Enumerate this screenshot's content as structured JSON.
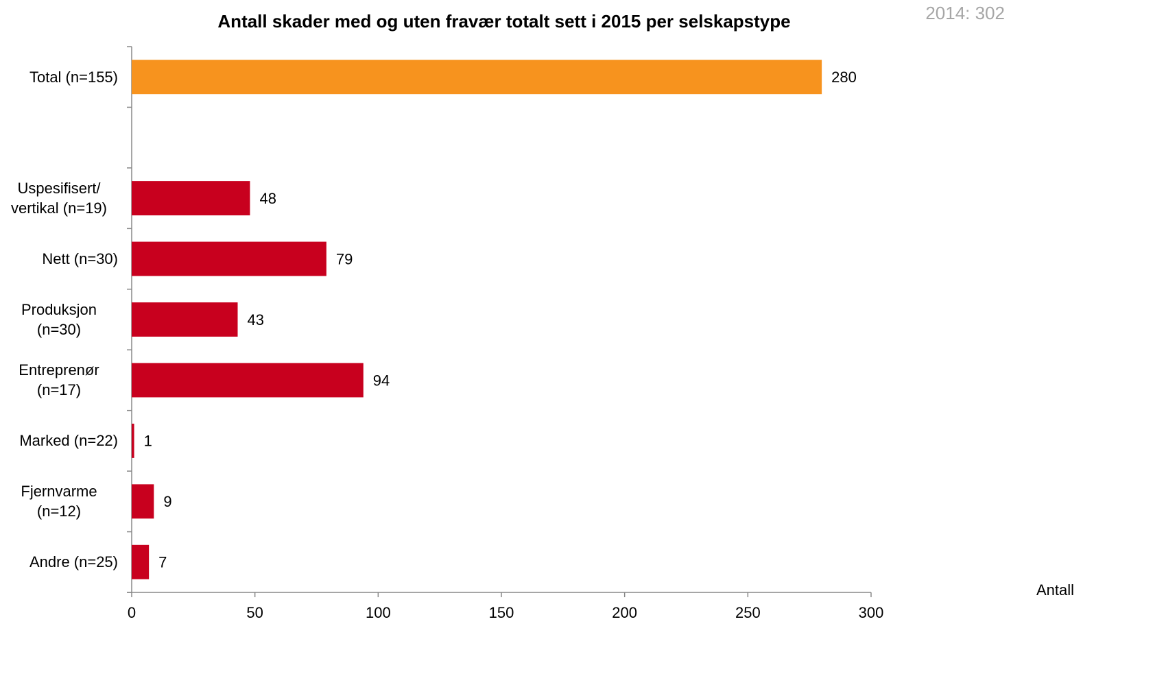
{
  "chart_data": {
    "type": "bar",
    "orientation": "horizontal",
    "title": "Antall skader med og uten fravær totalt sett i 2015 per selskapstype",
    "annotation": "2014: 302",
    "x_label": "Antall",
    "categories": [
      "Total (n=155)",
      null,
      "Uspesifisert/ vertikal (n=19)",
      "Nett (n=30)",
      "Produksjon (n=30)",
      "Entreprenør (n=17)",
      "Marked (n=22)",
      "Fjernvarme (n=12)",
      "Andre (n=25)"
    ],
    "values": [
      280,
      null,
      48,
      79,
      43,
      94,
      1,
      9,
      7
    ],
    "colors": [
      "#f7931e",
      null,
      "#c8001e",
      "#c8001e",
      "#c8001e",
      "#c8001e",
      "#c8001e",
      "#c8001e",
      "#c8001e"
    ],
    "xlim": [
      0,
      300
    ],
    "xticks": [
      0,
      50,
      100,
      150,
      200,
      250,
      300
    ],
    "grid": false
  }
}
